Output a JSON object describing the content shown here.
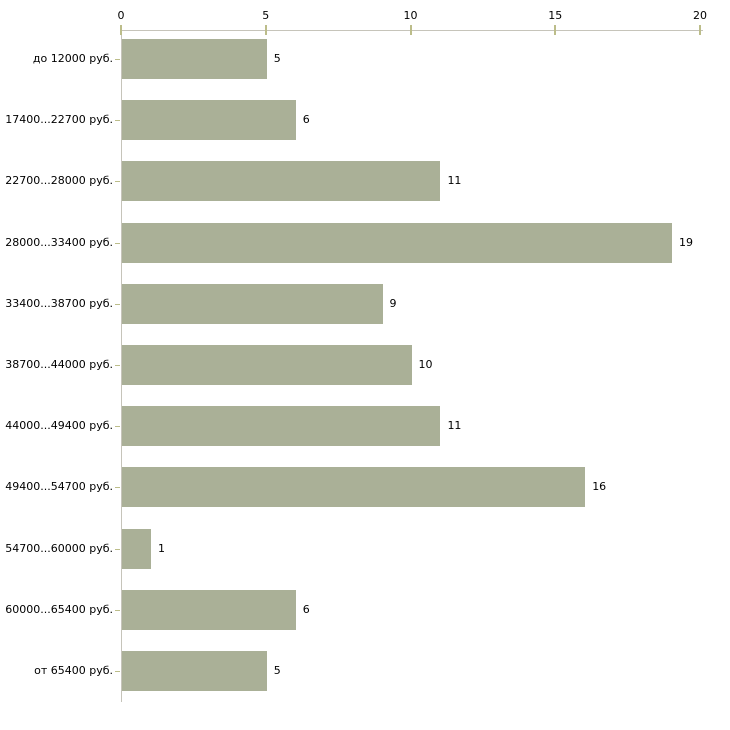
{
  "chart_data": {
    "type": "bar",
    "orientation": "horizontal",
    "title": "",
    "xlabel": "",
    "ylabel": "",
    "categories": [
      "до 12000 руб.",
      "17400...22700 руб.",
      "22700...28000 руб.",
      "28000...33400 руб.",
      "33400...38700 руб.",
      "38700...44000 руб.",
      "44000...49400 руб.",
      "49400...54700 руб.",
      "54700...60000 руб.",
      "60000...65400 руб.",
      "от 65400 руб."
    ],
    "values": [
      5,
      6,
      11,
      19,
      9,
      10,
      11,
      16,
      1,
      6,
      5
    ],
    "x_ticks": [
      0,
      5,
      10,
      15,
      20
    ],
    "xlim": [
      0,
      20
    ],
    "value_labels_shown": true,
    "legend": "none",
    "grid": "off",
    "colors": {
      "bar": "#aab097",
      "axis_line": "#c6c4ba",
      "tick_mark": "#bcbd8a",
      "text": "#000000",
      "background": "#ffffff"
    }
  }
}
